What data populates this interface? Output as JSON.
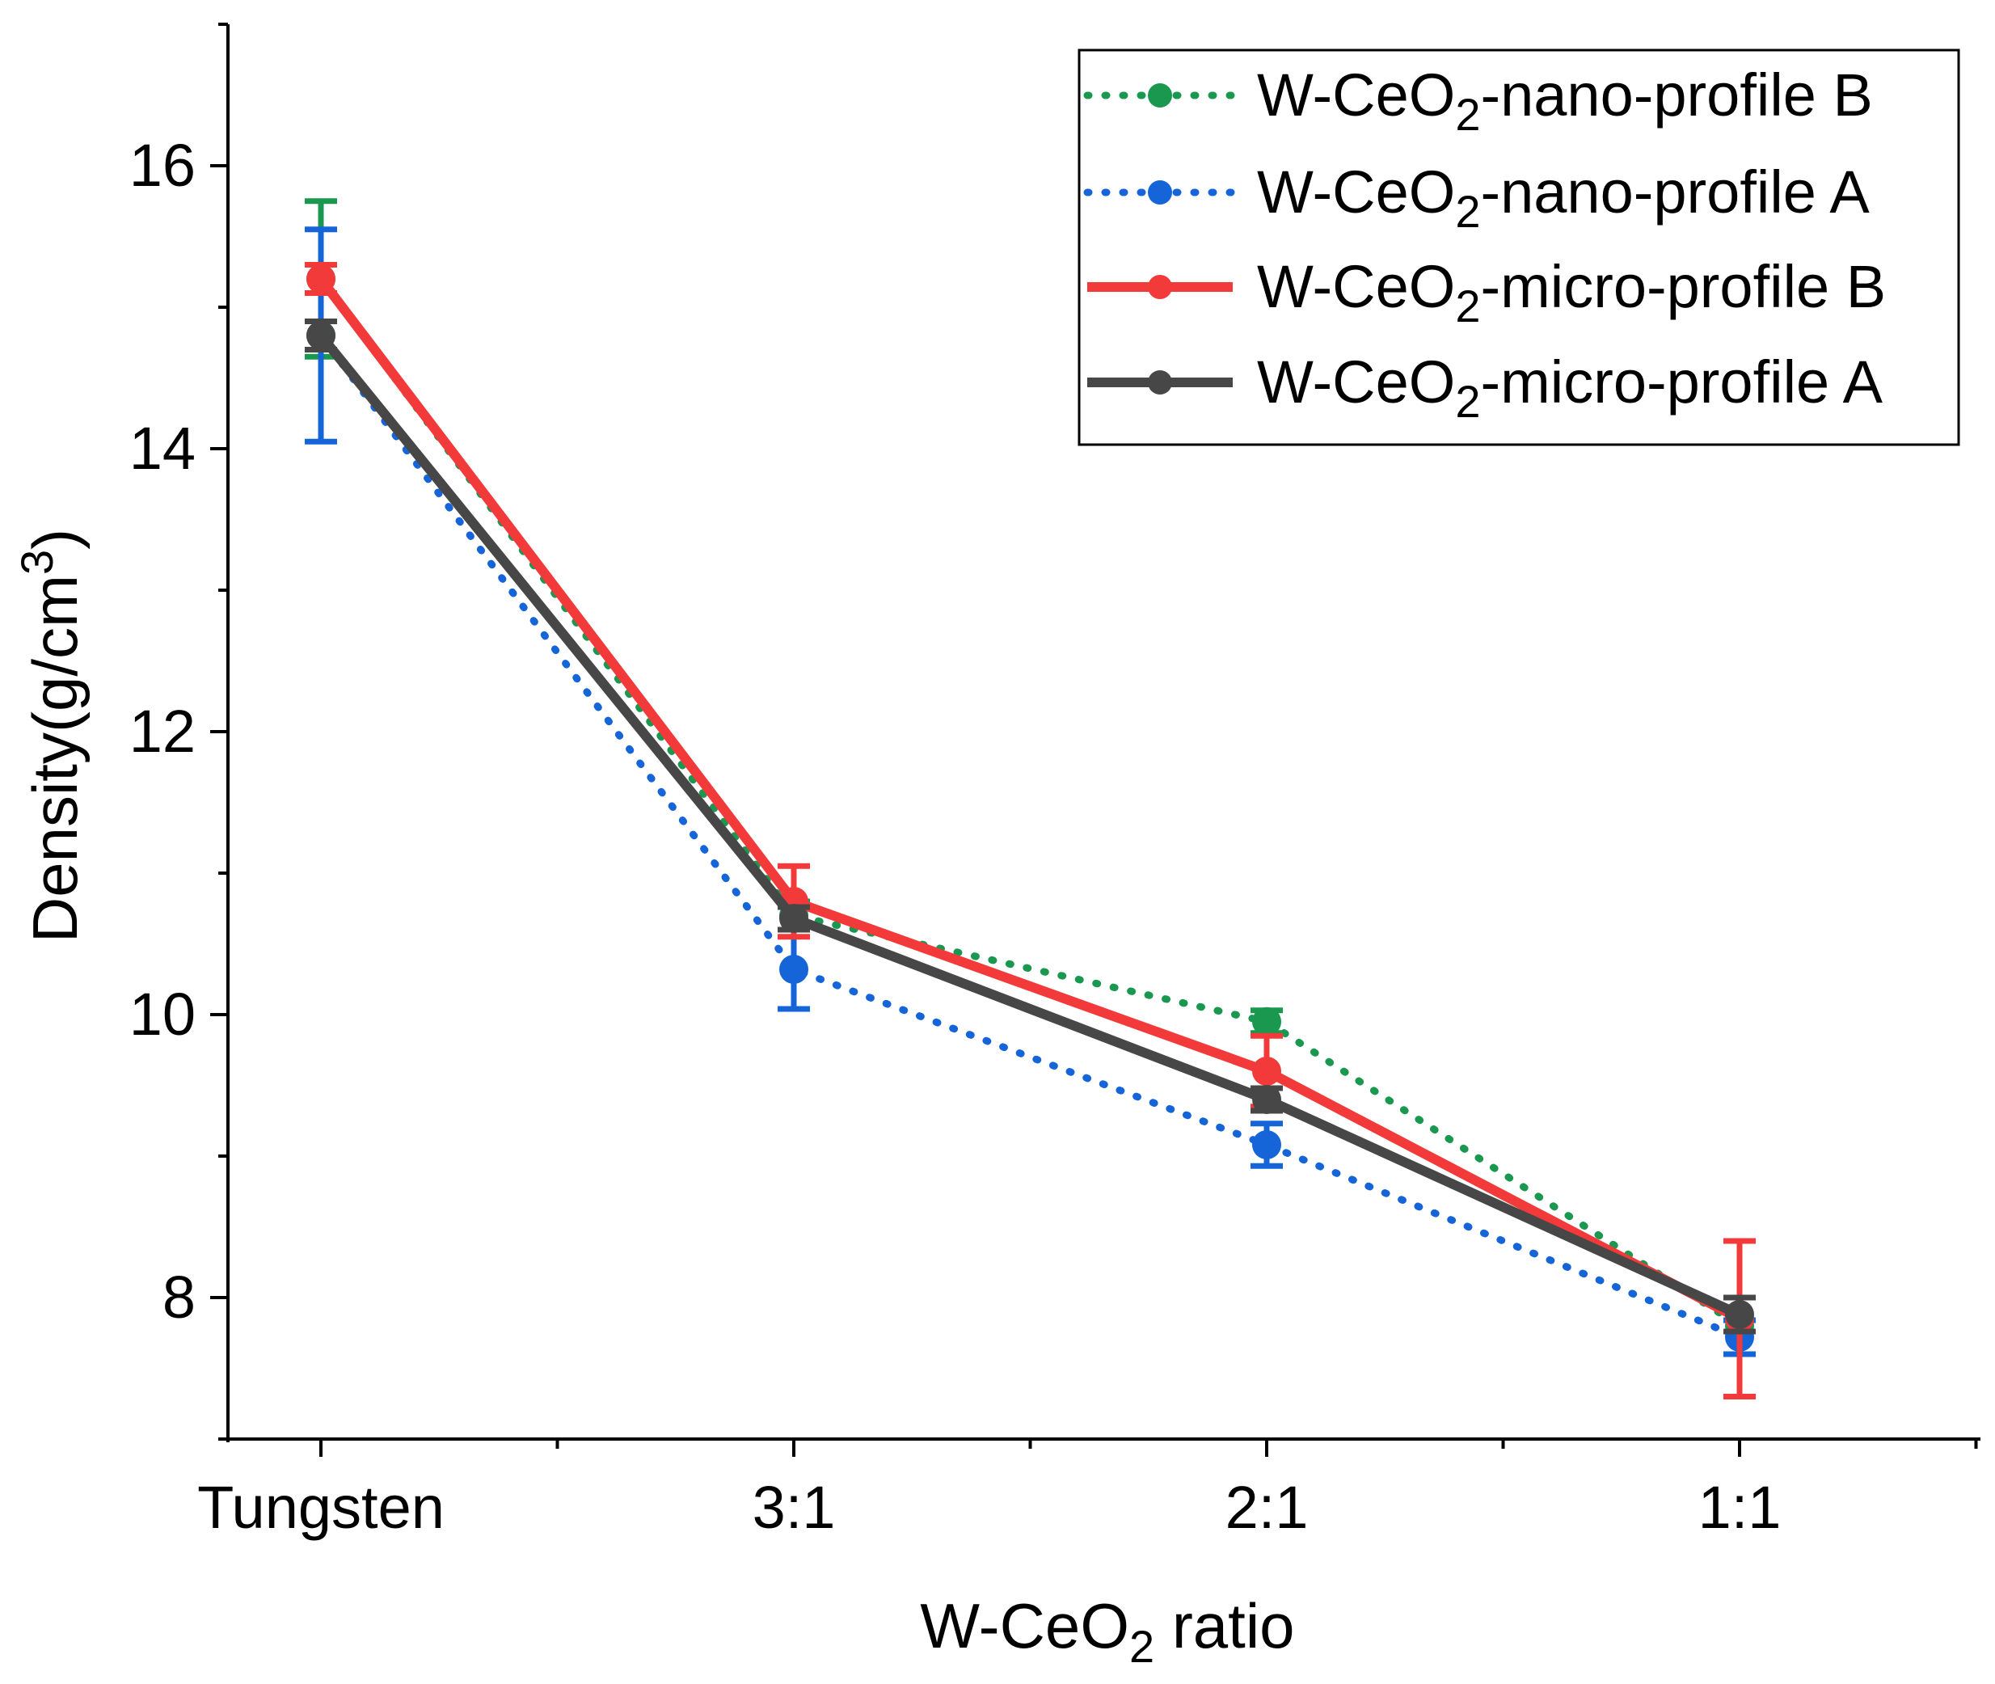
{
  "chart_data": {
    "type": "line",
    "title": "",
    "xlabel": {
      "main": "W-CeO",
      "sub": "2",
      "rest": " ratio"
    },
    "ylabel": {
      "main": "Density(g/cm",
      "sup": "3",
      "rest": ")"
    },
    "categories": [
      "Tungsten",
      "3:1",
      "2:1",
      "1:1"
    ],
    "ylim": [
      7,
      17
    ],
    "yticks": [
      8,
      10,
      12,
      14,
      16
    ],
    "ytick_labels": [
      "8",
      "10",
      "12",
      "14",
      "16"
    ],
    "grid": false,
    "legend_position": "top-right",
    "series": [
      {
        "name": "W-CeO2-nano-profile B",
        "label_parts": {
          "pre": "W-CeO",
          "sub": "2",
          "post": "-nano-profile B"
        },
        "color": "#1a9850",
        "style": "dotted",
        "values": [
          15.2,
          10.7,
          9.95,
          7.8
        ],
        "errors": [
          0.55,
          0.1,
          0.08,
          0.2
        ]
      },
      {
        "name": "W-CeO2-nano-profile A",
        "label_parts": {
          "pre": "W-CeO",
          "sub": "2",
          "post": "-nano-profile A"
        },
        "color": "#1565d8",
        "style": "dotted",
        "values": [
          14.8,
          10.32,
          9.08,
          7.72
        ],
        "errors": [
          0.75,
          0.28,
          0.15,
          0.12
        ]
      },
      {
        "name": "W-CeO2-micro-profile B",
        "label_parts": {
          "pre": "W-CeO",
          "sub": "2",
          "post": "-micro-profile B"
        },
        "color": "#f23a3a",
        "style": "solid",
        "values": [
          15.2,
          10.8,
          9.6,
          7.85
        ],
        "errors": [
          0.1,
          0.25,
          0.25,
          0.55
        ]
      },
      {
        "name": "W-CeO2-micro-profile A",
        "label_parts": {
          "pre": "W-CeO",
          "sub": "2",
          "post": "-micro-profile A"
        },
        "color": "#474747",
        "style": "solid",
        "values": [
          14.8,
          10.68,
          9.4,
          7.88
        ],
        "errors": [
          0.1,
          0.08,
          0.08,
          0.12
        ]
      }
    ]
  }
}
